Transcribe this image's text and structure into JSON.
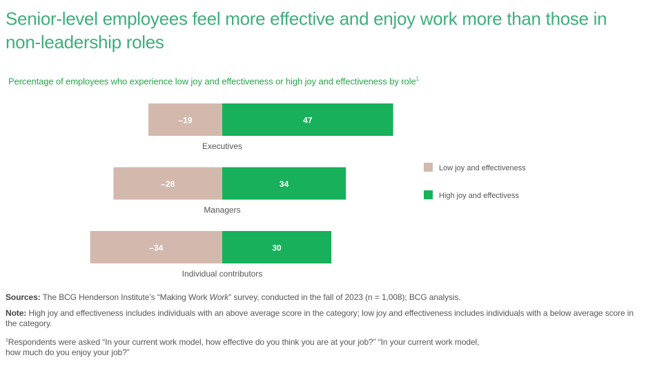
{
  "title": "Senior-level employees feel more effective and enjoy work more than those in non-leadership roles",
  "subtitle": "Percentage of employees who experience low joy and effectiveness or high joy and effectiveness by role",
  "subtitle_footnote_mark": "1",
  "chart_data": {
    "type": "bar",
    "orientation": "horizontal",
    "stacked": "diverging",
    "categories": [
      "Executives",
      "Managers",
      "Individual contributors"
    ],
    "series": [
      {
        "name": "Low joy and effectiveness",
        "values": [
          -19,
          -28,
          -34
        ],
        "labels": [
          "–19",
          "–28",
          "–34"
        ],
        "color": "#d3b9ad"
      },
      {
        "name": "High joy and effectivess",
        "values": [
          47,
          34,
          30
        ],
        "labels": [
          "47",
          "34",
          "30"
        ],
        "color": "#18b05a"
      }
    ],
    "legend_position": "right",
    "grid": false
  },
  "footer": {
    "sources_label": "Sources:",
    "sources_text_1": " The BCG Henderson Institute’s “Making Work ",
    "sources_italic": "Work",
    "sources_text_2": "” survey, conducted in the fall of 2023 (n = 1,008); BCG analysis.",
    "note_label": "Note:",
    "note_text": " High joy and effectiveness includes individuals with an above average score in the category; low joy and effectiveness includes individuals with a below average score in the category.",
    "footnote_mark": "1",
    "footnote_text": "Respondents were asked “In your current work model, how effective do you think you are at your job?” “In your current work model, how much do you enjoy your job?”"
  }
}
